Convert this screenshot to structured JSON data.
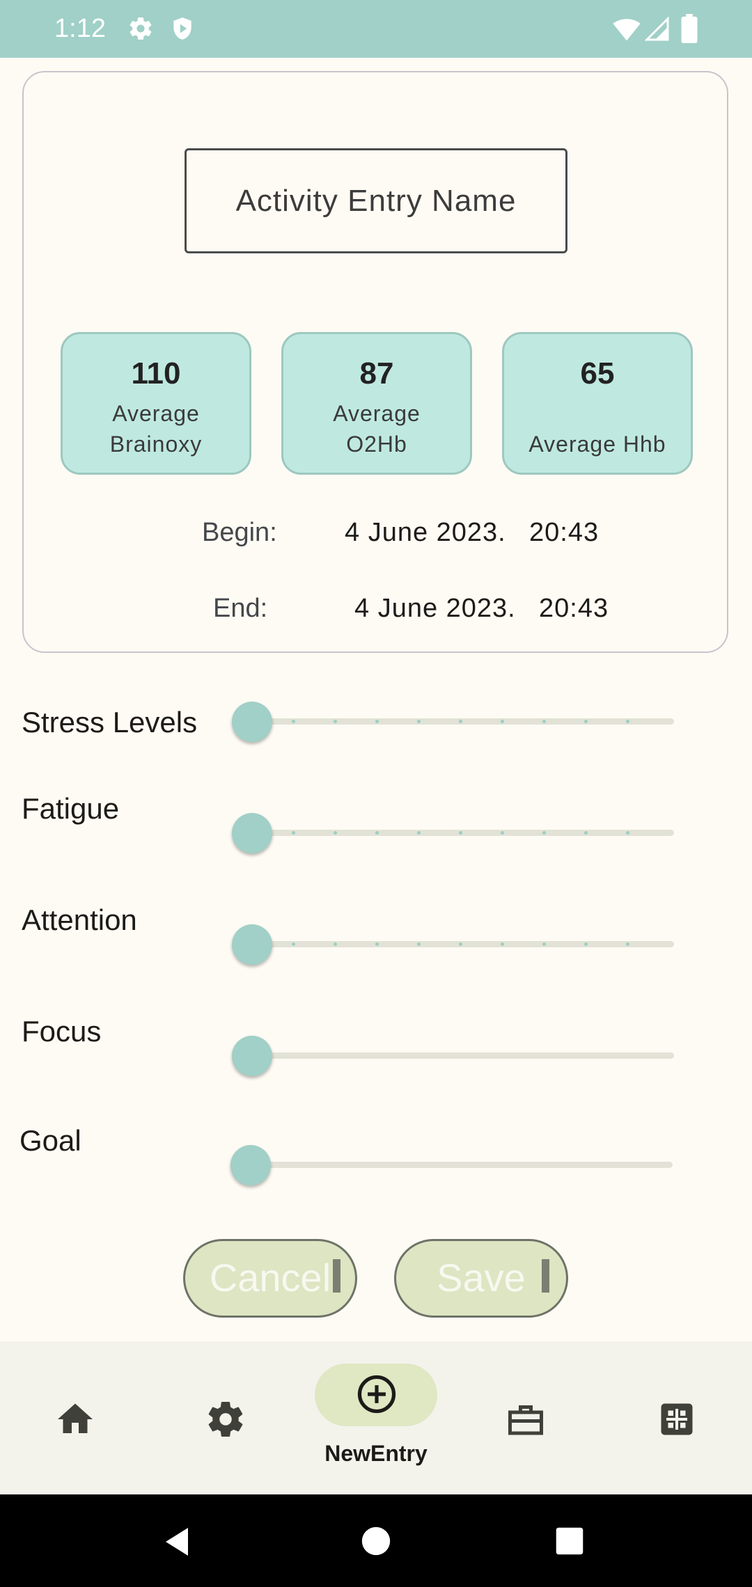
{
  "status_bar": {
    "time": "1:12",
    "icons": [
      "gear-icon",
      "shield-icon",
      "wifi-icon",
      "signal-icon",
      "battery-icon"
    ]
  },
  "entry": {
    "name_placeholder": "Activity Entry Name",
    "stats": [
      {
        "value": "110",
        "label_line1": "Average",
        "label_line2": "Brainoxy"
      },
      {
        "value": "87",
        "label_line1": "Average",
        "label_line2": "O2Hb"
      },
      {
        "value": "65",
        "label_line1": "",
        "label_line2": "Average Hhb"
      }
    ],
    "begin": {
      "label": "Begin:",
      "date": "4 June 2023.",
      "time": "20:43"
    },
    "end": {
      "label": "End:",
      "date": "4 June 2023.",
      "time": "20:43"
    }
  },
  "sliders": [
    {
      "label": "Stress Levels",
      "value": 0,
      "discrete": true
    },
    {
      "label": "Fatigue",
      "value": 0,
      "discrete": true
    },
    {
      "label": "Attention",
      "value": 0,
      "discrete": true
    },
    {
      "label": "Focus",
      "value": 0,
      "discrete": false
    },
    {
      "label": "Goal",
      "value": 0,
      "discrete": false
    }
  ],
  "actions": {
    "cancel_label": "Cancel",
    "save_label": "Save"
  },
  "bottom_nav": {
    "items": [
      {
        "icon": "home-icon"
      },
      {
        "icon": "settings-icon"
      },
      {
        "icon": "add-circle-icon",
        "label": "NewEntry",
        "selected": true
      },
      {
        "icon": "briefcase-icon"
      },
      {
        "icon": "grid-icon"
      }
    ]
  },
  "colors": {
    "primary": "#a0d0c7",
    "stat_box": "#bfe9e0",
    "button": "#dde5c3",
    "background": "#fefbf4",
    "nav_background": "#f3f3ec"
  }
}
